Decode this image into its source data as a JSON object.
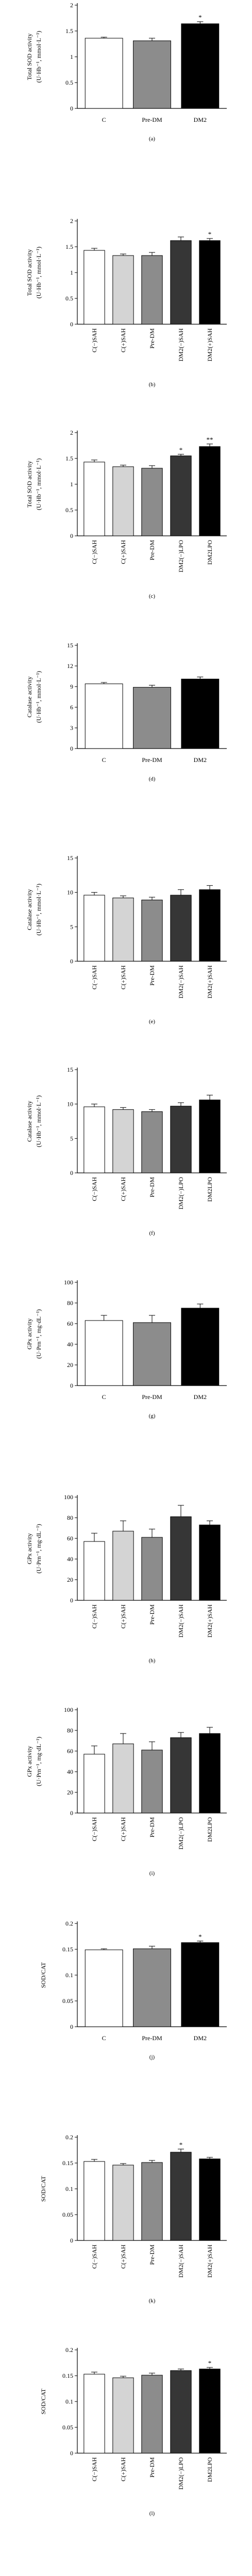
{
  "colors": {
    "white": "#ffffff",
    "light_gray": "#d4d4d4",
    "gray": "#8c8c8c",
    "dark_gray": "#363636",
    "black": "#000000",
    "axis": "#000000"
  },
  "chart_data": [
    {
      "type": "bar",
      "panel_label": "(a)",
      "ylabel_lines": [
        "Total SOD activity",
        "(U·Hb⁻¹, mmol·L⁻¹)"
      ],
      "ylim": [
        0,
        2
      ],
      "yticks": [
        0,
        0.5,
        1,
        1.5,
        2
      ],
      "ytick_labels": [
        "0",
        "0.5",
        "1",
        "1.5",
        "2"
      ],
      "categories": [
        "C",
        "Pre-DM",
        "DM2"
      ],
      "values": [
        1.36,
        1.31,
        1.64
      ],
      "errors": [
        0.02,
        0.05,
        0.04
      ],
      "colors": [
        "#ffffff",
        "#8c8c8c",
        "#000000"
      ],
      "annotations": [
        "",
        "",
        "*"
      ],
      "rotate_labels": false
    },
    {
      "type": "bar",
      "panel_label": "(b)",
      "ylabel_lines": [
        "Total SOD activity",
        "(U·Hb⁻¹, mmol·L⁻¹)"
      ],
      "ylim": [
        0,
        2
      ],
      "yticks": [
        0,
        0.5,
        1,
        1.5,
        2
      ],
      "ytick_labels": [
        "0",
        "0.5",
        "1",
        "1.5",
        "2"
      ],
      "categories": [
        "C(−)SAH",
        "C(+)SAH",
        "Pre-DM",
        "DM2(−)SAH",
        "DM2(+)SAH"
      ],
      "values": [
        1.43,
        1.33,
        1.33,
        1.62,
        1.62
      ],
      "errors": [
        0.04,
        0.03,
        0.06,
        0.07,
        0.04
      ],
      "colors": [
        "#ffffff",
        "#d4d4d4",
        "#8c8c8c",
        "#363636",
        "#000000"
      ],
      "annotations": [
        "",
        "",
        "",
        "",
        "*"
      ],
      "rotate_labels": true
    },
    {
      "type": "bar",
      "panel_label": "(c)",
      "ylabel_lines": [
        "Total SOD activity",
        "(U·Hb⁻¹, mmol·L⁻¹)"
      ],
      "ylim": [
        0,
        2
      ],
      "yticks": [
        0,
        0.5,
        1,
        1.5,
        2
      ],
      "ytick_labels": [
        "0",
        "0.5",
        "1",
        "1.5",
        "2"
      ],
      "categories": [
        "C(−)SAH",
        "C(+)SAH",
        "Pre-DM",
        "DM2(−)LPO",
        "DM2LPO"
      ],
      "values": [
        1.43,
        1.34,
        1.31,
        1.55,
        1.73
      ],
      "errors": [
        0.04,
        0.03,
        0.05,
        0.03,
        0.05
      ],
      "colors": [
        "#ffffff",
        "#d4d4d4",
        "#8c8c8c",
        "#363636",
        "#000000"
      ],
      "annotations": [
        "",
        "",
        "",
        "*",
        "**"
      ],
      "rotate_labels": true
    },
    {
      "type": "bar",
      "panel_label": "(d)",
      "ylabel_lines": [
        "Catalase activity",
        "(U·Hb⁻¹, mmol·L⁻¹)"
      ],
      "ylim": [
        0,
        15
      ],
      "yticks": [
        0,
        3,
        6,
        9,
        12,
        15
      ],
      "ytick_labels": [
        "0",
        "3",
        "6",
        "9",
        "12",
        "15"
      ],
      "categories": [
        "C",
        "Pre-DM",
        "DM2"
      ],
      "values": [
        9.4,
        8.9,
        10.1
      ],
      "errors": [
        0.2,
        0.3,
        0.3
      ],
      "colors": [
        "#ffffff",
        "#8c8c8c",
        "#000000"
      ],
      "annotations": [
        "",
        "",
        ""
      ],
      "rotate_labels": false
    },
    {
      "type": "bar",
      "panel_label": "(e)",
      "ylabel_lines": [
        "Catalase activity",
        "(U·Hb⁻¹, mmol·L⁻¹)"
      ],
      "ylim": [
        0,
        15
      ],
      "yticks": [
        0,
        5,
        10,
        15
      ],
      "ytick_labels": [
        "0",
        "5",
        "10",
        "15"
      ],
      "categories": [
        "C(−)SAH",
        "C(+)SAH",
        "Pre-DM",
        "DM2(−)SAH",
        "DM2(+)SAH"
      ],
      "values": [
        9.6,
        9.2,
        8.9,
        9.6,
        10.4
      ],
      "errors": [
        0.4,
        0.3,
        0.4,
        0.8,
        0.6
      ],
      "colors": [
        "#ffffff",
        "#d4d4d4",
        "#8c8c8c",
        "#363636",
        "#000000"
      ],
      "annotations": [
        "",
        "",
        "",
        "",
        ""
      ],
      "rotate_labels": true
    },
    {
      "type": "bar",
      "panel_label": "(f)",
      "ylabel_lines": [
        "Catalase activity",
        "(U·Hb⁻¹, mmol·L⁻¹)"
      ],
      "ylim": [
        0,
        15
      ],
      "yticks": [
        0,
        5,
        10,
        15
      ],
      "ytick_labels": [
        "0",
        "5",
        "10",
        "15"
      ],
      "categories": [
        "C(−)SAH",
        "C(+)SAH",
        "Pre-DM",
        "DM2(−)LPO",
        "DM2LPO"
      ],
      "values": [
        9.6,
        9.2,
        8.9,
        9.7,
        10.6
      ],
      "errors": [
        0.4,
        0.3,
        0.3,
        0.5,
        0.7
      ],
      "colors": [
        "#ffffff",
        "#d4d4d4",
        "#8c8c8c",
        "#363636",
        "#000000"
      ],
      "annotations": [
        "",
        "",
        "",
        "",
        ""
      ],
      "rotate_labels": true
    },
    {
      "type": "bar",
      "panel_label": "(g)",
      "ylabel_lines": [
        "GPx activity",
        "(U·Prn⁻¹, mg·dL⁻¹)"
      ],
      "ylim": [
        0,
        100
      ],
      "yticks": [
        0,
        20,
        40,
        60,
        80,
        100
      ],
      "ytick_labels": [
        "0",
        "20",
        "40",
        "60",
        "80",
        "100"
      ],
      "categories": [
        "C",
        "Pre-DM",
        "DM2"
      ],
      "values": [
        63,
        61,
        75
      ],
      "errors": [
        5,
        7,
        4
      ],
      "colors": [
        "#ffffff",
        "#8c8c8c",
        "#000000"
      ],
      "annotations": [
        "",
        "",
        ""
      ],
      "rotate_labels": false
    },
    {
      "type": "bar",
      "panel_label": "(h)",
      "ylabel_lines": [
        "GPx activity",
        "(U·Prn⁻¹, mg·dL⁻¹)"
      ],
      "ylim": [
        0,
        100
      ],
      "yticks": [
        0,
        20,
        40,
        60,
        80,
        100
      ],
      "ytick_labels": [
        "0",
        "20",
        "40",
        "60",
        "80",
        "100"
      ],
      "categories": [
        "C(−)SAH",
        "C(+)SAH",
        "Pre-DM",
        "DM2(−)SAH",
        "DM2(+)SAH"
      ],
      "values": [
        57,
        67,
        61,
        81,
        73
      ],
      "errors": [
        8,
        10,
        8,
        11,
        4
      ],
      "colors": [
        "#ffffff",
        "#d4d4d4",
        "#8c8c8c",
        "#363636",
        "#000000"
      ],
      "annotations": [
        "",
        "",
        "",
        "",
        ""
      ],
      "rotate_labels": true
    },
    {
      "type": "bar",
      "panel_label": "(i)",
      "ylabel_lines": [
        "GPx activity",
        "(U·Prn⁻¹, mg·dL⁻¹)"
      ],
      "ylim": [
        0,
        100
      ],
      "yticks": [
        0,
        20,
        40,
        60,
        80,
        100
      ],
      "ytick_labels": [
        "0",
        "20",
        "40",
        "60",
        "80",
        "100"
      ],
      "categories": [
        "C(−)SAH",
        "C(+)SAH",
        "Pre-DM",
        "DM2(−)LPO",
        "DM2LPO"
      ],
      "values": [
        57,
        67,
        61,
        73,
        77
      ],
      "errors": [
        8,
        10,
        8,
        5,
        6
      ],
      "colors": [
        "#ffffff",
        "#d4d4d4",
        "#8c8c8c",
        "#363636",
        "#000000"
      ],
      "annotations": [
        "",
        "",
        "",
        "",
        ""
      ],
      "rotate_labels": true
    },
    {
      "type": "bar",
      "panel_label": "(j)",
      "ylabel_lines": [
        "SOD/CAT"
      ],
      "ylim": [
        0,
        0.2
      ],
      "yticks": [
        0,
        0.05,
        0.1,
        0.15,
        0.2
      ],
      "ytick_labels": [
        "0",
        "0.05",
        "0.1",
        "0.15",
        "0.2"
      ],
      "categories": [
        "C",
        "Pre-DM",
        "DM2"
      ],
      "values": [
        0.149,
        0.151,
        0.163
      ],
      "errors": [
        0.002,
        0.005,
        0.003
      ],
      "colors": [
        "#ffffff",
        "#8c8c8c",
        "#000000"
      ],
      "annotations": [
        "",
        "",
        "*"
      ],
      "rotate_labels": false
    },
    {
      "type": "bar",
      "panel_label": "(k)",
      "ylabel_lines": [
        "SOD/CAT"
      ],
      "ylim": [
        0,
        0.2
      ],
      "yticks": [
        0,
        0.05,
        0.1,
        0.15,
        0.2
      ],
      "ytick_labels": [
        "0",
        "0.05",
        "0.1",
        "0.15",
        "0.2"
      ],
      "categories": [
        "C(−)SAH",
        "C(+)SAH",
        "Pre-DM",
        "DM2(−)SAH",
        "DM2(+)SAH"
      ],
      "values": [
        0.153,
        0.146,
        0.151,
        0.171,
        0.158
      ],
      "errors": [
        0.004,
        0.003,
        0.004,
        0.006,
        0.003
      ],
      "colors": [
        "#ffffff",
        "#d4d4d4",
        "#8c8c8c",
        "#363636",
        "#000000"
      ],
      "annotations": [
        "",
        "",
        "",
        "*",
        ""
      ],
      "rotate_labels": true
    },
    {
      "type": "bar",
      "panel_label": "(l)",
      "ylabel_lines": [
        "SOD/CAT"
      ],
      "ylim": [
        0,
        0.2
      ],
      "yticks": [
        0,
        0.05,
        0.1,
        0.15,
        0.2
      ],
      "ytick_labels": [
        "0",
        "0.05",
        "0.1",
        "0.15",
        "0.2"
      ],
      "categories": [
        "C(−)SAH",
        "C(+)SAH",
        "Pre-DM",
        "DM2(−)LPO",
        "DM2LPO"
      ],
      "values": [
        0.153,
        0.146,
        0.151,
        0.16,
        0.163
      ],
      "errors": [
        0.004,
        0.003,
        0.004,
        0.003,
        0.003
      ],
      "colors": [
        "#ffffff",
        "#d4d4d4",
        "#8c8c8c",
        "#363636",
        "#000000"
      ],
      "annotations": [
        "",
        "",
        "",
        "",
        "*"
      ],
      "rotate_labels": true
    }
  ]
}
